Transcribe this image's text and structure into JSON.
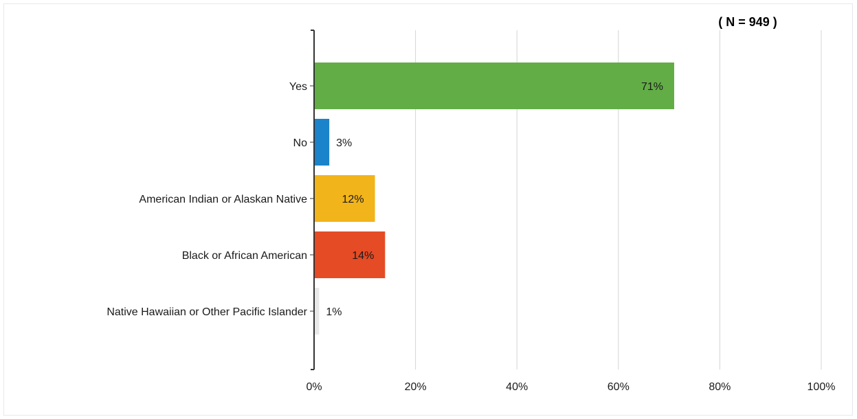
{
  "chart_data": {
    "type": "bar",
    "orientation": "horizontal",
    "annotation": "( N = 949 )",
    "categories": [
      "Yes",
      "No",
      "American Indian or Alaskan Native",
      "Black or African American",
      "Native Hawaiian or Other Pacific Islander"
    ],
    "values": [
      71,
      3,
      12,
      14,
      1
    ],
    "value_labels": [
      "71%",
      "3%",
      "12%",
      "14%",
      "1%"
    ],
    "colors": [
      "#62ad46",
      "#1b83c9",
      "#f2b41b",
      "#e54b25",
      "#e8e8e8"
    ],
    "xlim": [
      0,
      100
    ],
    "x_ticks": [
      0,
      20,
      40,
      60,
      80,
      100
    ],
    "x_tick_labels": [
      "0%",
      "20%",
      "40%",
      "60%",
      "80%",
      "100%"
    ],
    "grid": true
  }
}
